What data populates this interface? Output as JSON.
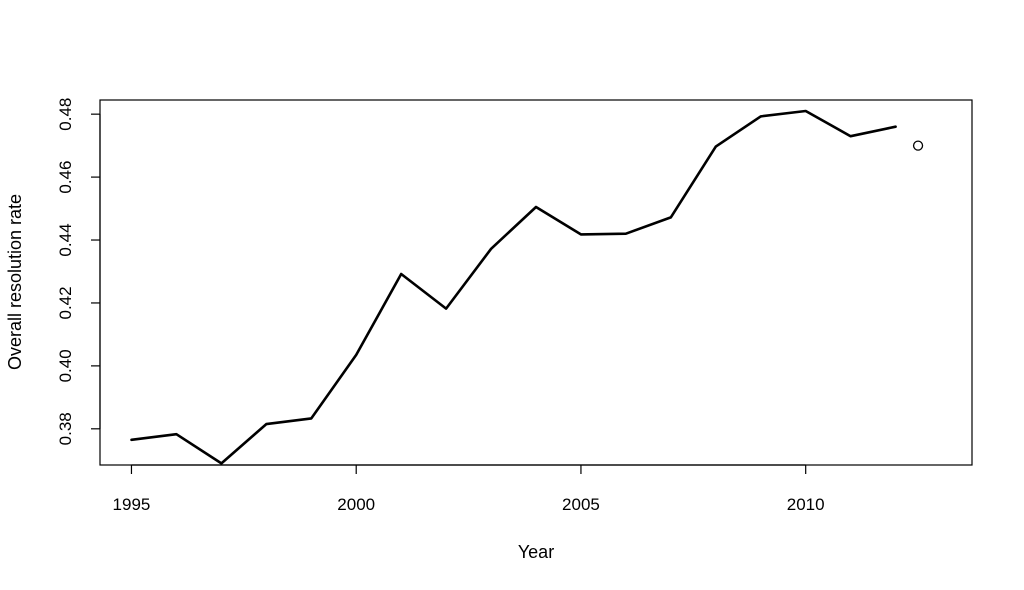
{
  "chart_data": {
    "type": "line",
    "title": "",
    "xlabel": "Year",
    "ylabel": "Overall resolution rate",
    "xlim": [
      1994.3,
      2013.7
    ],
    "ylim": [
      0.3685,
      0.4845
    ],
    "x_ticks": [
      1995,
      2000,
      2005,
      2010
    ],
    "x_tick_labels": [
      "1995",
      "2000",
      "2005",
      "2010"
    ],
    "y_ticks": [
      0.38,
      0.4,
      0.42,
      0.44,
      0.46,
      0.48
    ],
    "y_tick_labels": [
      "0.38",
      "0.40",
      "0.42",
      "0.44",
      "0.46",
      "0.48"
    ],
    "grid": false,
    "series": [
      {
        "x": [
          1995,
          1996,
          1997,
          1998,
          1999,
          2000,
          2001,
          2002,
          2003,
          2004,
          2005,
          2006,
          2007,
          2008,
          2009,
          2010,
          2011,
          2012
        ],
        "values": [
          0.3765,
          0.3783,
          0.369,
          0.3815,
          0.3833,
          0.4035,
          0.4292,
          0.4182,
          0.4372,
          0.4505,
          0.4418,
          0.442,
          0.4472,
          0.4697,
          0.4793,
          0.481,
          0.473,
          0.476
        ],
        "color": "#000000"
      }
    ],
    "points": [
      {
        "x": 2012.5,
        "y": 0.47,
        "marker": "open-circle"
      }
    ]
  }
}
